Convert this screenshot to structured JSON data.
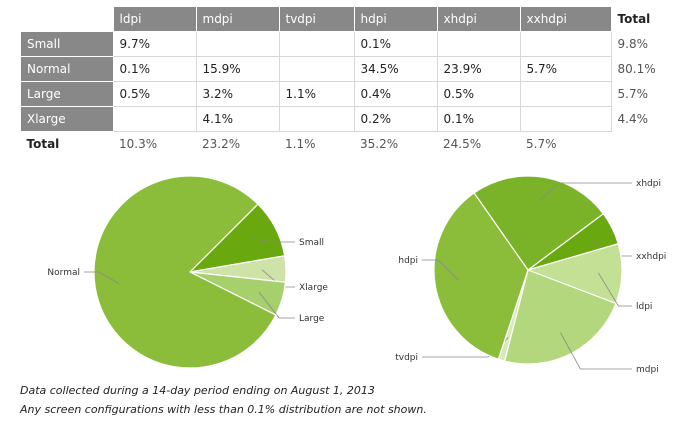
{
  "table": {
    "columns": [
      "ldpi",
      "mdpi",
      "tvdpi",
      "hdpi",
      "xhdpi",
      "xxhdpi"
    ],
    "total_header": "Total",
    "rows": [
      {
        "label": "Small",
        "cells": [
          "9.7%",
          "",
          "",
          "0.1%",
          "",
          ""
        ],
        "total": "9.8%"
      },
      {
        "label": "Normal",
        "cells": [
          "0.1%",
          "15.9%",
          "",
          "34.5%",
          "23.9%",
          "5.7%"
        ],
        "total": "80.1%"
      },
      {
        "label": "Large",
        "cells": [
          "0.5%",
          "3.2%",
          "1.1%",
          "0.4%",
          "0.5%",
          ""
        ],
        "total": "5.7%"
      },
      {
        "label": "Xlarge",
        "cells": [
          "",
          "4.1%",
          "",
          "0.2%",
          "0.1%",
          ""
        ],
        "total": "4.4%"
      }
    ],
    "total_row": {
      "label": "Total",
      "cells": [
        "10.3%",
        "23.2%",
        "1.1%",
        "35.2%",
        "24.5%",
        "5.7%"
      ]
    }
  },
  "chart_data": [
    {
      "type": "pie",
      "slices": [
        {
          "label": "Small",
          "value": 9.8,
          "color": "#6aa80f"
        },
        {
          "label": "Xlarge",
          "value": 4.4,
          "color": "#cde3a8"
        },
        {
          "label": "Large",
          "value": 5.7,
          "color": "#a6d06b"
        },
        {
          "label": "Normal",
          "value": 80.1,
          "color": "#8cbd3a"
        }
      ]
    },
    {
      "type": "pie",
      "slices": [
        {
          "label": "xxhdpi",
          "value": 5.7,
          "color": "#6aa80f"
        },
        {
          "label": "ldpi",
          "value": 10.3,
          "color": "#c3e095"
        },
        {
          "label": "mdpi",
          "value": 23.2,
          "color": "#b2d77c"
        },
        {
          "label": "tvdpi",
          "value": 1.1,
          "color": "#d6eabb"
        },
        {
          "label": "hdpi",
          "value": 35.2,
          "color": "#8cbd3a"
        },
        {
          "label": "xhdpi",
          "value": 24.5,
          "color": "#7bb328"
        }
      ]
    }
  ],
  "notes": {
    "line1": "Data collected during a 14-day period ending on August 1, 2013",
    "line2": "Any screen configurations with less than 0.1% distribution are not shown."
  }
}
